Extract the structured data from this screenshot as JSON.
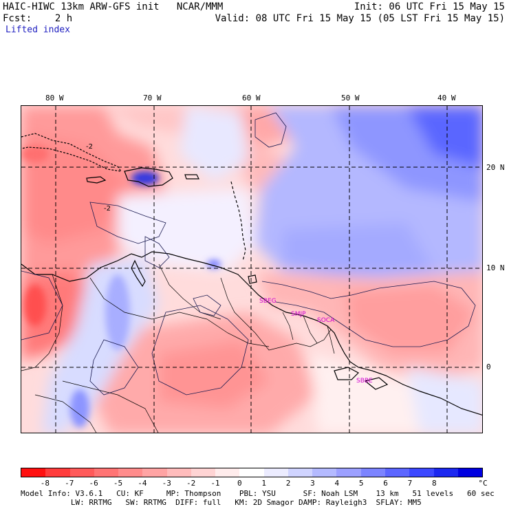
{
  "header": {
    "title": "HAIC-HIWC 13km ARW-GFS init   NCAR/MMM",
    "init": "Init: 06 UTC Fri 15 May 15",
    "fcst": "Fcst:    2 h",
    "valid": "Valid: 08 UTC Fri 15 May 15 (05 LST Fri 15 May 15)",
    "field": "Lifted index"
  },
  "map": {
    "lon_labels": [
      "80 W",
      "70 W",
      "60 W",
      "50 W",
      "40 W"
    ],
    "lat_labels": [
      "20 N",
      "10 N",
      "0"
    ],
    "contour_labels": [
      "-2",
      "-2"
    ],
    "stations": [
      "SBEG",
      "SMJP",
      "SOCA",
      "SBBE"
    ]
  },
  "colorbar": {
    "labels": [
      "-8",
      "-7",
      "-6",
      "-5",
      "-4",
      "-3",
      "-2",
      "-1",
      "0",
      "1",
      "2",
      "3",
      "4",
      "5",
      "6",
      "7",
      "8"
    ],
    "unit": "°C",
    "colors": [
      "#ff1010",
      "#ff3c3c",
      "#ff5a5a",
      "#ff7474",
      "#ff8c8c",
      "#ffa4a4",
      "#ffbcbc",
      "#ffd4d4",
      "#ffecec",
      "#ffffff",
      "#ececff",
      "#d0d4ff",
      "#b4baff",
      "#9ca0ff",
      "#7c84ff",
      "#5c66ff",
      "#3c48ff",
      "#1c28f0",
      "#0000e0"
    ]
  },
  "footer": {
    "line1": "Model Info: V3.6.1   CU: KF     MP: Thompson    PBL: YSU      SF: Noah LSM    13 km   51 levels   60 sec",
    "line2": "           LW: RRTMG   SW: RRTMG  DIFF: full   KM: 2D Smagor DAMP: Rayleigh3  SFLAY: MM5"
  }
}
